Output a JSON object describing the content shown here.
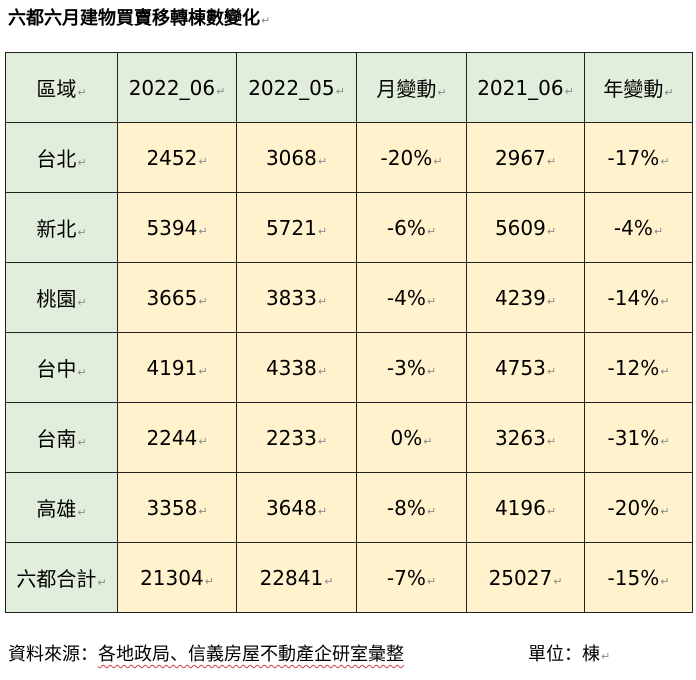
{
  "title": "六都六月建物買賣移轉棟數變化",
  "paragraph_mark": "↵",
  "table": {
    "headers": [
      "區域",
      "2022_06",
      "2022_05",
      "月變動",
      "2021_06",
      "年變動"
    ],
    "rows": [
      [
        "台北",
        "2452",
        "3068",
        "-20%",
        "2967",
        "-17%"
      ],
      [
        "新北",
        "5394",
        "5721",
        "-6%",
        "5609",
        "-4%"
      ],
      [
        "桃園",
        "3665",
        "3833",
        "-4%",
        "4239",
        "-14%"
      ],
      [
        "台中",
        "4191",
        "4338",
        "-3%",
        "4753",
        "-12%"
      ],
      [
        "台南",
        "2244",
        "2233",
        "0%",
        "3263",
        "-31%"
      ],
      [
        "高雄",
        "3358",
        "3648",
        "-8%",
        "4196",
        "-20%"
      ],
      [
        "六都合計",
        "21304",
        "22841",
        "-7%",
        "25027",
        "-15%"
      ]
    ]
  },
  "footer": {
    "source_label": "資料來源：",
    "source_text": "各地政局、信義房屋不動產企研室彙整",
    "unit": "單位：棟"
  },
  "colors": {
    "header_bg": "#e1eedb",
    "cell_bg": "#fff2cd",
    "border": "#222222"
  }
}
